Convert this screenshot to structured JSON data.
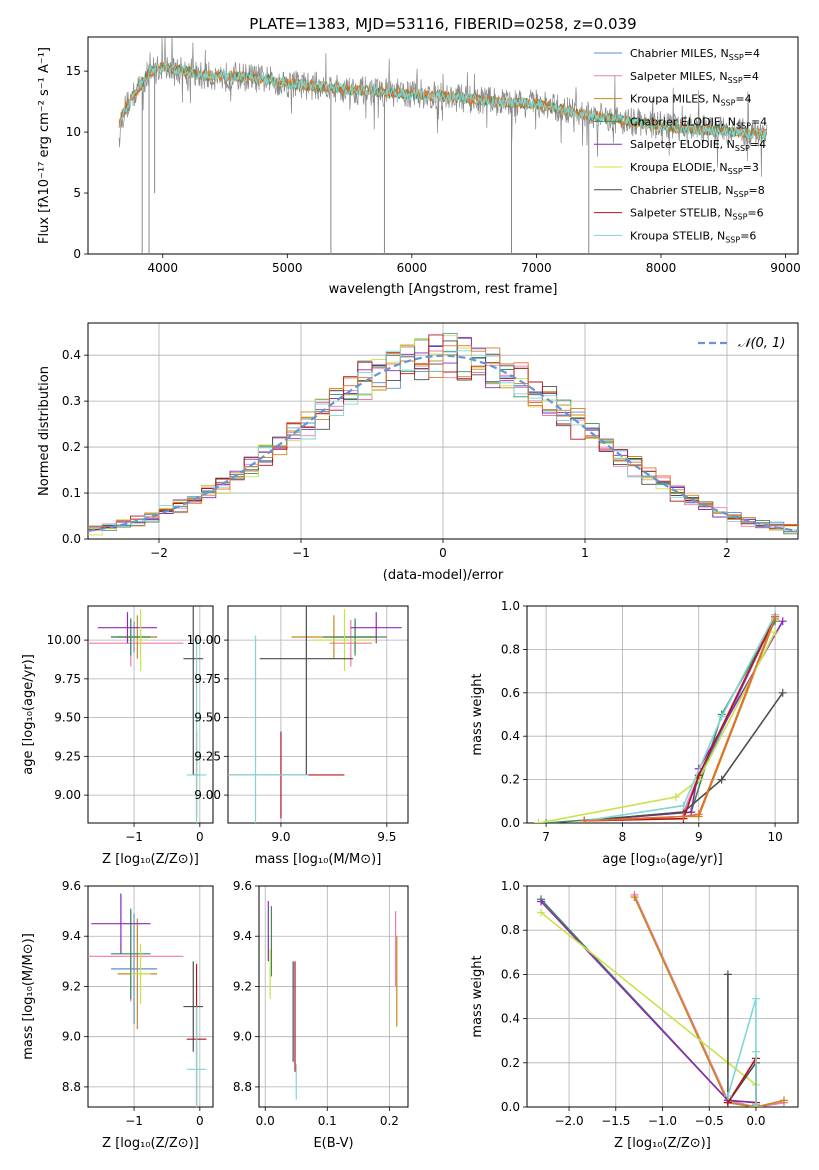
{
  "colors": {
    "chabrier_miles": "#5b8fd4",
    "salpeter_miles": "#f07ab0",
    "kroupa_miles": "#c98a1a",
    "chabrier_elodie": "#3c8c5a",
    "salpeter_elodie": "#8b2bb3",
    "kroupa_elodie": "#c8e34a",
    "chabrier_stelib": "#4d4d4d",
    "salpeter_stelib": "#b3141e",
    "kroupa_stelib": "#7fd6d6",
    "normal": "#6495d8",
    "grid": "#b0b0b0",
    "data": "#888888",
    "red_model": "#e07030"
  },
  "chart_data": [
    {
      "type": "line",
      "title": "PLATE=1383, MJD=53116, FIBERID=0258, z=0.039",
      "xlabel": "wavelength [Angstrom, rest frame]",
      "ylabel": "Flux [fλ10⁻¹⁷ erg cm⁻² s⁻¹ A⁻¹]",
      "xlim": [
        3400,
        9100
      ],
      "ylim": [
        0,
        17.8
      ],
      "xticks": [
        "4000",
        "5000",
        "6000",
        "7000",
        "8000",
        "9000"
      ],
      "yticks": [
        "0",
        "5",
        "10",
        "15"
      ],
      "legend_position": "top-right",
      "legend": [
        {
          "name": "Chabrier MILES, N",
          "sub": "SSP",
          "suffix": "=4",
          "color": "chabrier_miles"
        },
        {
          "name": "Salpeter MILES, N",
          "sub": "SSP",
          "suffix": "=4",
          "color": "salpeter_miles"
        },
        {
          "name": "Kroupa MILES, N",
          "sub": "SSP",
          "suffix": "=4",
          "color": "kroupa_miles"
        },
        {
          "name": "Chabrier ELODIE, N",
          "sub": "SSP",
          "suffix": "=4",
          "color": "chabrier_elodie"
        },
        {
          "name": "Salpeter ELODIE, N",
          "sub": "SSP",
          "suffix": "=4",
          "color": "salpeter_elodie"
        },
        {
          "name": "Kroupa ELODIE, N",
          "sub": "SSP",
          "suffix": "=3",
          "color": "kroupa_elodie"
        },
        {
          "name": "Chabrier STELIB, N",
          "sub": "SSP",
          "suffix": "=8",
          "color": "chabrier_stelib"
        },
        {
          "name": "Salpeter STELIB, N",
          "sub": "SSP",
          "suffix": "=6",
          "color": "salpeter_stelib"
        },
        {
          "name": "Kroupa STELIB, N",
          "sub": "SSP",
          "suffix": "=6",
          "color": "kroupa_stelib"
        }
      ],
      "spectrum_anchors": {
        "x": [
          3650,
          3700,
          3800,
          3900,
          4000,
          4100,
          4200,
          4300,
          4500,
          4700,
          5000,
          5300,
          5600,
          6000,
          6400,
          6800,
          7000,
          7400,
          7800,
          8200,
          8600,
          8850
        ],
        "y": [
          10.5,
          12.0,
          13.5,
          15.0,
          15.3,
          15.1,
          15.0,
          14.6,
          14.6,
          14.5,
          14.0,
          13.7,
          13.4,
          13.1,
          12.8,
          12.4,
          12.3,
          11.4,
          10.8,
          10.3,
          10.0,
          9.8
        ]
      },
      "spectrum_dips": [
        {
          "x": 3835,
          "y": 0
        },
        {
          "x": 3890,
          "y": 0
        },
        {
          "x": 3935,
          "y": 5.0
        },
        {
          "x": 5350,
          "y": 0
        },
        {
          "x": 5780,
          "y": 0
        },
        {
          "x": 6800,
          "y": 0
        },
        {
          "x": 7420,
          "y": 0
        }
      ]
    },
    {
      "type": "bar",
      "xlabel": "(data-model)/error",
      "ylabel": "Normed distribution",
      "xlim": [
        -2.5,
        2.5
      ],
      "ylim": [
        0,
        0.47
      ],
      "xticks": [
        "−2",
        "−1",
        "0",
        "1",
        "2"
      ],
      "yticks": [
        "0.0",
        "0.1",
        "0.2",
        "0.3",
        "0.4"
      ],
      "legend_position": "top-right",
      "legend": [
        {
          "name": "𝒩(0, 1)",
          "color": "normal"
        }
      ],
      "bin_width": 0.1,
      "bin_start": -2.5
    },
    {
      "type": "scatter",
      "xlabel": "Z [log₁₀(Z/Z⊙)]",
      "ylabel": "age  [log₁₀(age/yr)]",
      "xlim": [
        -1.7,
        0.2
      ],
      "ylim": [
        8.82,
        10.22
      ],
      "xticks": [
        "−1",
        "0"
      ],
      "yticks": [
        "9.00",
        "9.25",
        "9.50",
        "9.75",
        "10.00"
      ],
      "points": [
        {
          "x": -1.0,
          "y": 10.02,
          "xerr": 0.35,
          "yerr": 0.1,
          "color": "chabrier_miles"
        },
        {
          "x": -1.05,
          "y": 9.98,
          "xerr": 0.8,
          "yerr": 0.15,
          "color": "salpeter_miles"
        },
        {
          "x": -0.95,
          "y": 10.02,
          "xerr": 0.3,
          "yerr": 0.14,
          "color": "kroupa_miles"
        },
        {
          "x": -1.05,
          "y": 10.02,
          "xerr": 0.3,
          "yerr": 0.12,
          "color": "chabrier_elodie"
        },
        {
          "x": -1.1,
          "y": 10.08,
          "xerr": 0.45,
          "yerr": 0.1,
          "color": "salpeter_elodie"
        },
        {
          "x": -0.9,
          "y": 10.0,
          "xerr": 0.1,
          "yerr": 0.2,
          "color": "kroupa_elodie"
        },
        {
          "x": -0.1,
          "y": 9.88,
          "xerr": 0.15,
          "yerr": 0.75,
          "color": "chabrier_stelib"
        },
        {
          "x": -0.05,
          "y": 9.13,
          "xerr": 0.05,
          "yerr": 0.28,
          "color": "salpeter_stelib"
        },
        {
          "x": -0.05,
          "y": 9.13,
          "xerr": 0.15,
          "yerr": 0.9,
          "color": "kroupa_stelib"
        }
      ]
    },
    {
      "type": "scatter",
      "xlabel": "mass [log₁₀(M/M⊙)]",
      "ylabel": "",
      "xlim": [
        8.75,
        9.6
      ],
      "ylim": [
        8.82,
        10.22
      ],
      "xticks": [
        "9.0",
        "9.5"
      ],
      "yticks": [
        "9.00",
        "9.25",
        "9.50",
        "9.75",
        "10.00"
      ],
      "points": [
        {
          "x": 9.35,
          "y": 10.02,
          "xerr": 0.1,
          "yerr": 0.1,
          "color": "chabrier_miles"
        },
        {
          "x": 9.33,
          "y": 9.98,
          "xerr": 0.1,
          "yerr": 0.15,
          "color": "salpeter_miles"
        },
        {
          "x": 9.25,
          "y": 10.02,
          "xerr": 0.2,
          "yerr": 0.14,
          "color": "kroupa_miles"
        },
        {
          "x": 9.35,
          "y": 10.02,
          "xerr": 0.15,
          "yerr": 0.12,
          "color": "chabrier_elodie"
        },
        {
          "x": 9.45,
          "y": 10.08,
          "xerr": 0.12,
          "yerr": 0.1,
          "color": "salpeter_elodie"
        },
        {
          "x": 9.3,
          "y": 10.0,
          "xerr": 0.15,
          "yerr": 0.2,
          "color": "kroupa_elodie"
        },
        {
          "x": 9.12,
          "y": 9.88,
          "xerr": 0.22,
          "yerr": 0.75,
          "color": "chabrier_stelib"
        },
        {
          "x": 9.0,
          "y": 9.13,
          "xerr": 0.3,
          "yerr": 0.28,
          "color": "salpeter_stelib"
        },
        {
          "x": 8.88,
          "y": 9.13,
          "xerr": 0.25,
          "yerr": 0.9,
          "color": "kroupa_stelib"
        }
      ]
    },
    {
      "type": "line",
      "xlabel": "age  [log₁₀(age/yr)]",
      "ylabel": "mass weight",
      "xlim": [
        6.75,
        10.3
      ],
      "ylim": [
        0,
        1.0
      ],
      "xticks": [
        "7",
        "8",
        "9",
        "10"
      ],
      "yticks": [
        "0.0",
        "0.2",
        "0.4",
        "0.6",
        "0.8",
        "1.0"
      ],
      "series": [
        {
          "color": "chabrier_miles",
          "x": [
            7.5,
            8.8,
            9.0,
            10.0
          ],
          "y": [
            0.01,
            0.05,
            0.2,
            0.95
          ]
        },
        {
          "color": "salpeter_miles",
          "x": [
            7.5,
            8.8,
            9.0,
            10.0
          ],
          "y": [
            0.01,
            0.05,
            0.22,
            0.96
          ]
        },
        {
          "color": "kroupa_miles",
          "x": [
            7.5,
            8.8,
            9.0,
            10.0
          ],
          "y": [
            0.01,
            0.03,
            0.03,
            0.94
          ]
        },
        {
          "color": "chabrier_elodie",
          "x": [
            7.0,
            8.9,
            9.3,
            10.0
          ],
          "y": [
            0.0,
            0.05,
            0.5,
            0.93
          ]
        },
        {
          "color": "salpeter_elodie",
          "x": [
            7.5,
            8.9,
            9.0,
            10.1
          ],
          "y": [
            0.01,
            0.05,
            0.25,
            0.93
          ]
        },
        {
          "color": "kroupa_elodie",
          "x": [
            6.9,
            8.7,
            9.0,
            10.0
          ],
          "y": [
            0.0,
            0.12,
            0.2,
            0.88
          ]
        },
        {
          "color": "chabrier_stelib",
          "x": [
            7.5,
            8.8,
            9.3,
            10.1
          ],
          "y": [
            0.01,
            0.05,
            0.2,
            0.6
          ]
        },
        {
          "color": "salpeter_stelib",
          "x": [
            7.5,
            8.8,
            9.0,
            10.0
          ],
          "y": [
            0.01,
            0.02,
            0.22,
            0.95
          ]
        },
        {
          "color": "kroupa_stelib",
          "x": [
            7.5,
            8.8,
            9.3,
            10.0
          ],
          "y": [
            0.01,
            0.08,
            0.49,
            0.96
          ]
        },
        {
          "color": "red_model",
          "x": [
            7.5,
            8.8,
            9.0,
            10.0
          ],
          "y": [
            0.01,
            0.03,
            0.04,
            0.95
          ]
        }
      ]
    },
    {
      "type": "scatter",
      "xlabel": "Z [log₁₀(Z/Z⊙)]",
      "ylabel": "mass [log₁₀(M/M⊙)]",
      "xlim": [
        -1.7,
        0.2
      ],
      "ylim": [
        8.72,
        9.6
      ],
      "xticks": [
        "−1",
        "0"
      ],
      "yticks": [
        "8.8",
        "9.0",
        "9.2",
        "9.4",
        "9.6"
      ],
      "points": [
        {
          "x": -1.0,
          "y": 9.27,
          "xerr": 0.35,
          "yerr": 0.22,
          "color": "chabrier_miles"
        },
        {
          "x": -1.05,
          "y": 9.32,
          "xerr": 0.8,
          "yerr": 0.18,
          "color": "salpeter_miles"
        },
        {
          "x": -0.95,
          "y": 9.25,
          "xerr": 0.3,
          "yerr": 0.22,
          "color": "kroupa_miles"
        },
        {
          "x": -1.05,
          "y": 9.33,
          "xerr": 0.3,
          "yerr": 0.18,
          "color": "chabrier_elodie"
        },
        {
          "x": -1.2,
          "y": 9.45,
          "xerr": 0.45,
          "yerr": 0.12,
          "color": "salpeter_elodie"
        },
        {
          "x": -0.9,
          "y": 9.25,
          "xerr": 0.15,
          "yerr": 0.12,
          "color": "kroupa_elodie"
        },
        {
          "x": -0.1,
          "y": 9.12,
          "xerr": 0.15,
          "yerr": 0.18,
          "color": "chabrier_stelib"
        },
        {
          "x": -0.05,
          "y": 8.99,
          "xerr": 0.15,
          "yerr": 0.3,
          "color": "salpeter_stelib"
        },
        {
          "x": -0.05,
          "y": 8.87,
          "xerr": 0.15,
          "yerr": 0.25,
          "color": "kroupa_stelib"
        }
      ]
    },
    {
      "type": "scatter",
      "xlabel": "E(B-V)",
      "ylabel": "",
      "xlim": [
        -0.01,
        0.23
      ],
      "ylim": [
        8.72,
        9.6
      ],
      "xticks": [
        "0.0",
        "0.1",
        "0.2"
      ],
      "yticks": [
        "8.8",
        "9.0",
        "9.2",
        "9.4",
        "9.6"
      ],
      "points": [
        {
          "x": 0.21,
          "y": 9.35,
          "xerr": 0,
          "yerr": 0.15,
          "color": "salpeter_miles"
        },
        {
          "x": 0.212,
          "y": 9.22,
          "xerr": 0,
          "yerr": 0.18,
          "color": "kroupa_miles"
        },
        {
          "x": 0.01,
          "y": 9.38,
          "xerr": 0,
          "yerr": 0.14,
          "color": "chabrier_elodie"
        },
        {
          "x": 0.005,
          "y": 9.42,
          "xerr": 0,
          "yerr": 0.12,
          "color": "salpeter_elodie"
        },
        {
          "x": 0.008,
          "y": 9.25,
          "xerr": 0,
          "yerr": 0.1,
          "color": "kroupa_elodie"
        },
        {
          "x": 0.045,
          "y": 9.1,
          "xerr": 0,
          "yerr": 0.2,
          "color": "chabrier_stelib"
        },
        {
          "x": 0.048,
          "y": 9.08,
          "xerr": 0,
          "yerr": 0.22,
          "color": "salpeter_stelib"
        },
        {
          "x": 0.05,
          "y": 8.82,
          "xerr": 0,
          "yerr": 0.07,
          "color": "kroupa_stelib"
        }
      ]
    },
    {
      "type": "line",
      "xlabel": "Z [log₁₀(Z/Z⊙)]",
      "ylabel": "mass weight",
      "xlim": [
        -2.45,
        0.45
      ],
      "ylim": [
        0,
        1.0
      ],
      "xticks": [
        "−2.0",
        "−1.5",
        "−1.0",
        "−0.5",
        "0.0"
      ],
      "yticks": [
        "0.0",
        "0.2",
        "0.4",
        "0.6",
        "0.8",
        "1.0"
      ],
      "series": [
        {
          "color": "chabrier_miles",
          "x": [
            -1.3,
            -0.3,
            0.0,
            0.3
          ],
          "y": [
            0.95,
            0.02,
            0.0,
            0.02
          ]
        },
        {
          "color": "salpeter_miles",
          "x": [
            -1.3,
            -0.3,
            0.0,
            0.3
          ],
          "y": [
            0.96,
            0.03,
            0.0,
            0.02
          ]
        },
        {
          "color": "kroupa_miles",
          "x": [
            -1.3,
            -0.3,
            0.0,
            0.3
          ],
          "y": [
            0.95,
            0.02,
            0.0,
            0.03
          ]
        },
        {
          "color": "chabrier_elodie",
          "x": [
            -2.3,
            -0.3,
            0.0
          ],
          "y": [
            0.94,
            0.03,
            0.02
          ]
        },
        {
          "color": "salpeter_elodie",
          "x": [
            -2.3,
            -0.3,
            0.0
          ],
          "y": [
            0.93,
            0.03,
            0.02
          ]
        },
        {
          "color": "kroupa_elodie",
          "x": [
            -2.3,
            -0.3,
            0.0
          ],
          "y": [
            0.88,
            0.2,
            0.1
          ]
        },
        {
          "color": "chabrier_stelib",
          "x": [
            -0.3,
            -0.3,
            0.0,
            0.0
          ],
          "y": [
            0.6,
            0.02,
            0.2,
            0.01
          ]
        },
        {
          "color": "salpeter_stelib",
          "x": [
            -0.3,
            0.0,
            0.0
          ],
          "y": [
            0.02,
            0.22,
            0.02
          ]
        },
        {
          "color": "kroupa_stelib",
          "x": [
            -0.3,
            0.0,
            0.0,
            0.0
          ],
          "y": [
            0.05,
            0.49,
            0.25,
            0.01
          ]
        }
      ]
    }
  ]
}
